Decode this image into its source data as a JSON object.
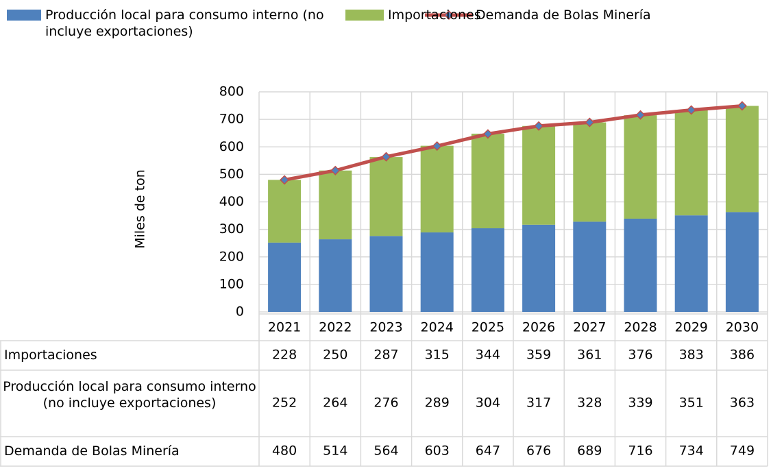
{
  "chart_data": {
    "type": "bar",
    "categories": [
      "2021",
      "2022",
      "2023",
      "2024",
      "2025",
      "2026",
      "2027",
      "2028",
      "2029",
      "2030"
    ],
    "series": [
      {
        "name": "Producción local para consumo interno (no incluye exportaciones)",
        "color": "#4f81bd",
        "type": "bar",
        "values": [
          252,
          264,
          276,
          289,
          304,
          317,
          328,
          339,
          351,
          363
        ]
      },
      {
        "name": "Importaciones",
        "color": "#9bbb59",
        "type": "bar",
        "values": [
          228,
          250,
          287,
          315,
          344,
          359,
          361,
          376,
          383,
          386
        ]
      },
      {
        "name": "Demanda de Bolas Minería",
        "color": "#c0504d",
        "marker_color": "#4f81bd",
        "type": "line",
        "values": [
          480,
          514,
          564,
          603,
          647,
          676,
          689,
          716,
          734,
          749
        ]
      }
    ],
    "stacked": true,
    "y_label": "Miles de ton",
    "ylim": [
      0,
      800
    ],
    "yticks": [
      0,
      100,
      200,
      300,
      400,
      500,
      600,
      700,
      800
    ],
    "grid": true,
    "legend": "top",
    "data_table": true
  }
}
